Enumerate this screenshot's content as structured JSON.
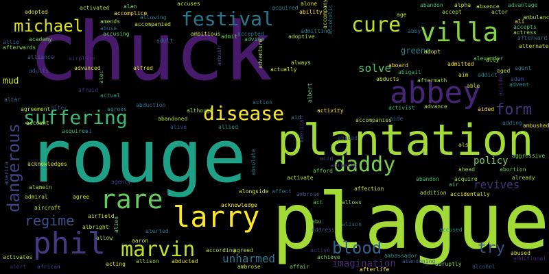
{
  "words": [
    {
      "text": "chuck",
      "color": "#481a6c"
    },
    {
      "text": "rouge",
      "color": "#1fa187"
    },
    {
      "text": "plague",
      "color": "#a2da37"
    },
    {
      "text": "plantation",
      "color": "#a2da37"
    },
    {
      "text": "abbey",
      "color": "#482677"
    },
    {
      "text": "villa",
      "color": "#86d549"
    },
    {
      "text": "festival",
      "color": "#2a788e"
    },
    {
      "text": "cure",
      "color": "#c2df23"
    },
    {
      "text": "michael",
      "color": "#dde318"
    },
    {
      "text": "suffering",
      "color": "#3cbb75"
    },
    {
      "text": "disease",
      "color": "#fde725"
    },
    {
      "text": "daddy",
      "color": "#7ad151"
    },
    {
      "text": "rare",
      "color": "#65cb5e"
    },
    {
      "text": "larry",
      "color": "#fde725"
    },
    {
      "text": "phil",
      "color": "#443983"
    },
    {
      "text": "marvin",
      "color": "#c2df23"
    },
    {
      "text": "blood",
      "color": "#35608d"
    },
    {
      "text": "form",
      "color": "#46317e"
    },
    {
      "text": "dangerous",
      "color": "#414487"
    },
    {
      "text": "regime",
      "color": "#3b528b"
    },
    {
      "text": "unharmed",
      "color": "#2a788e"
    },
    {
      "text": "revives",
      "color": "#46317e"
    },
    {
      "text": "try",
      "color": "#3b528b"
    },
    {
      "text": "policy",
      "color": "#75d054"
    },
    {
      "text": "solve",
      "color": "#52c569"
    },
    {
      "text": "greene",
      "color": "#26828e"
    },
    {
      "text": "mud",
      "color": "#c8e020"
    },
    {
      "text": "imagination",
      "color": "#482878"
    },
    {
      "text": "accompanies",
      "color": "#bddf26"
    },
    {
      "text": "adopt",
      "color": "#dde318"
    },
    {
      "text": "alexander",
      "color": "#5ec962"
    },
    {
      "text": "ambulance",
      "color": "#b5de2b"
    },
    {
      "text": "alternate",
      "color": "#d2e21b"
    },
    {
      "text": "afterwards",
      "color": "#86d549"
    },
    {
      "text": "admitted",
      "color": "#fde725"
    },
    {
      "text": "absence",
      "color": "#b5de2b"
    },
    {
      "text": "advantage",
      "color": "#2fb47c"
    },
    {
      "text": "actress",
      "color": "#a0da39"
    },
    {
      "text": "afterward",
      "color": "#2e6e8e"
    },
    {
      "text": "accepts",
      "color": "#4ac16d"
    },
    {
      "text": "activist",
      "color": "#38b977"
    },
    {
      "text": "advance",
      "color": "#addc30"
    },
    {
      "text": "aided",
      "color": "#fde725"
    },
    {
      "text": "adding",
      "color": "#2c728e"
    },
    {
      "text": "ambushed",
      "color": "#e5e419"
    },
    {
      "text": "aggressive",
      "color": "#7ad151"
    },
    {
      "text": "abortion",
      "color": "#70cf57"
    },
    {
      "text": "already",
      "color": "#a8db34"
    },
    {
      "text": "acquire",
      "color": "#a2da37"
    },
    {
      "text": "air",
      "color": "#35b779"
    },
    {
      "text": "ahead",
      "color": "#8ed645"
    },
    {
      "text": "also",
      "color": "#c8e020"
    },
    {
      "text": "acid",
      "color": "#433e85"
    },
    {
      "text": "activity",
      "color": "#fde725"
    },
    {
      "text": "aide",
      "color": "#32648e"
    },
    {
      "text": "afford",
      "color": "#6ccd5a"
    },
    {
      "text": "activate",
      "color": "#c8e020"
    },
    {
      "text": "affection",
      "color": "#d2e21b"
    },
    {
      "text": "addition",
      "color": "#a8db34"
    },
    {
      "text": "accidentally",
      "color": "#e5e419"
    },
    {
      "text": "abandon",
      "color": "#3dbc74"
    },
    {
      "text": "allows",
      "color": "#86d549"
    },
    {
      "text": "alison",
      "color": "#31688e"
    },
    {
      "text": "accused",
      "color": "#26828e"
    },
    {
      "text": "act",
      "color": "#4ac16d"
    },
    {
      "text": "abu",
      "color": "#5ec962"
    },
    {
      "text": "address",
      "color": "#3b528b"
    },
    {
      "text": "ambassador",
      "color": "#21918c"
    },
    {
      "text": "achieve",
      "color": "#7ad151"
    },
    {
      "text": "abused",
      "color": "#dde318"
    },
    {
      "text": "additional",
      "color": "#482475"
    },
    {
      "text": "abandoning",
      "color": "#3b528b"
    },
    {
      "text": "abruptly",
      "color": "#86d549"
    },
    {
      "text": "alcohol",
      "color": "#3b528b"
    },
    {
      "text": "afterlife",
      "color": "#fde725"
    },
    {
      "text": "affair",
      "color": "#7ad151"
    },
    {
      "text": "active",
      "color": "#46317e"
    },
    {
      "text": "according",
      "color": "#c2df23"
    },
    {
      "text": "agreed",
      "color": "#bddf26"
    },
    {
      "text": "ambrose",
      "color": "#d2e21b"
    },
    {
      "text": "abducted",
      "color": "#dde318"
    },
    {
      "text": "allison",
      "color": "#a0da39"
    },
    {
      "text": "acting",
      "color": "#e5e419"
    },
    {
      "text": "african",
      "color": "#3f4788"
    },
    {
      "text": "alert",
      "color": "#482475"
    },
    {
      "text": "activates",
      "color": "#b5de2b"
    },
    {
      "text": "alter",
      "color": "#3e4a89"
    },
    {
      "text": "aaron",
      "color": "#d8e219"
    },
    {
      "text": "allow",
      "color": "#a0da39"
    },
    {
      "text": "albright",
      "color": "#c2df23"
    },
    {
      "text": "alerted",
      "color": "#29798e"
    },
    {
      "text": "alien",
      "color": "#6ccd5a"
    },
    {
      "text": "airfield",
      "color": "#d8e219"
    },
    {
      "text": "aircraft",
      "color": "#c8e020"
    },
    {
      "text": "admiral",
      "color": "#b5de2b"
    },
    {
      "text": "agree",
      "color": "#d2e21b"
    },
    {
      "text": "alamein",
      "color": "#addc30"
    },
    {
      "text": "agency",
      "color": "#414487"
    },
    {
      "text": "acknowledge",
      "color": "#fde725"
    },
    {
      "text": "alongside",
      "color": "#dde318"
    },
    {
      "text": "acknowledges",
      "color": "#e5e419"
    },
    {
      "text": "america",
      "color": "#3d4d8a"
    },
    {
      "text": "account",
      "color": "#c2df23"
    },
    {
      "text": "acquires",
      "color": "#38b977"
    },
    {
      "text": "ai",
      "color": "#3e4989"
    },
    {
      "text": "agreement",
      "color": "#b5de2b"
    },
    {
      "text": "agrees",
      "color": "#26828e"
    },
    {
      "text": "abandoned",
      "color": "#a8db34"
    },
    {
      "text": "abduction",
      "color": "#2c728e"
    },
    {
      "text": "although",
      "color": "#a0da39"
    },
    {
      "text": "alive",
      "color": "#3b528b"
    },
    {
      "text": "allied",
      "color": "#1f9a8a"
    },
    {
      "text": "action",
      "color": "#29798e"
    },
    {
      "text": "actual",
      "color": "#1e9c89"
    },
    {
      "text": "alec",
      "color": "#3dbc74"
    },
    {
      "text": "afraid",
      "color": "#46307e"
    },
    {
      "text": "advanced",
      "color": "#c8e020"
    },
    {
      "text": "alfred",
      "color": "#d2e21b"
    },
    {
      "text": "alliance",
      "color": "#38598c"
    },
    {
      "text": "adults",
      "color": "#3a548c"
    },
    {
      "text": "altar",
      "color": "#2e6e8e"
    },
    {
      "text": "academy",
      "color": "#7ad151"
    },
    {
      "text": "allie",
      "color": "#31688e"
    },
    {
      "text": "amends",
      "color": "#addc30"
    },
    {
      "text": "abuse",
      "color": "#31688e"
    },
    {
      "text": "accusing",
      "color": "#5ec962"
    },
    {
      "text": "accompanied",
      "color": "#d8e219"
    },
    {
      "text": "ambitious",
      "color": "#c8e020"
    },
    {
      "text": "admit",
      "color": "#65cb5e"
    },
    {
      "text": "accepted",
      "color": "#2a788e"
    },
    {
      "text": "advice",
      "color": "#3dbc74"
    },
    {
      "text": "adoptive",
      "color": "#b5de2b"
    },
    {
      "text": "adult",
      "color": "#2e6e8e"
    },
    {
      "text": "ambush",
      "color": "#414487"
    },
    {
      "text": "adventure",
      "color": "#a2da37"
    },
    {
      "text": "always",
      "color": "#c8e020"
    },
    {
      "text": "actually",
      "color": "#d2e21b"
    },
    {
      "text": "airplane",
      "color": "#482878"
    },
    {
      "text": "adopted",
      "color": "#dde318"
    },
    {
      "text": "activated",
      "color": "#a8db34"
    },
    {
      "text": "accomplice",
      "color": "#fde725"
    },
    {
      "text": "allowing",
      "color": "#29798e"
    },
    {
      "text": "accuses",
      "color": "#c8e020"
    },
    {
      "text": "acquired",
      "color": "#26828e"
    },
    {
      "text": "admitting",
      "color": "#2a788e"
    },
    {
      "text": "alcoholic",
      "color": "#2a788e"
    },
    {
      "text": "ability",
      "color": "#fde725"
    },
    {
      "text": "accompany",
      "color": "#c2df23"
    },
    {
      "text": "alone",
      "color": "#d2e21b"
    },
    {
      "text": "alpha",
      "color": "#c8e020"
    },
    {
      "text": "accept",
      "color": "#a0da39"
    },
    {
      "text": "age",
      "color": "#b5de2b"
    },
    {
      "text": "actor",
      "color": "#a8db34"
    },
    {
      "text": "ali",
      "color": "#fde725"
    },
    {
      "text": "abby",
      "color": "#2c728e"
    },
    {
      "text": "aboard",
      "color": "#fde725"
    },
    {
      "text": "abigail",
      "color": "#2fb47c"
    },
    {
      "text": "aftermath",
      "color": "#a0da39"
    },
    {
      "text": "abducts",
      "color": "#c8e020"
    },
    {
      "text": "aim",
      "color": "#d8e219"
    },
    {
      "text": "addict",
      "color": "#26828e"
    },
    {
      "text": "aged",
      "color": "#c2df23"
    },
    {
      "text": "agent",
      "color": "#2a788e"
    },
    {
      "text": "ally",
      "color": "#bddf26"
    },
    {
      "text": "adam",
      "color": "#3e4989"
    },
    {
      "text": "able",
      "color": "#d2e21b"
    },
    {
      "text": "accident",
      "color": "#482878"
    },
    {
      "text": "advent",
      "color": "#21918c"
    },
    {
      "text": "albert",
      "color": "#5ec962"
    },
    {
      "text": "american",
      "color": "#46337f"
    },
    {
      "text": "abroad",
      "color": "#3e4989"
    },
    {
      "text": "aid",
      "color": "#29798e"
    },
    {
      "text": "agreeing",
      "color": "#482878"
    },
    {
      "text": "absolute",
      "color": "#2a788e"
    },
    {
      "text": "affect",
      "color": "#2a788e"
    },
    {
      "text": "ambrose",
      "color": "#3b528b"
    },
    {
      "text": "alan",
      "color": "#7ad151"
    },
    {
      "text": "abandon",
      "color": "#3dbc74"
    }
  ]
}
